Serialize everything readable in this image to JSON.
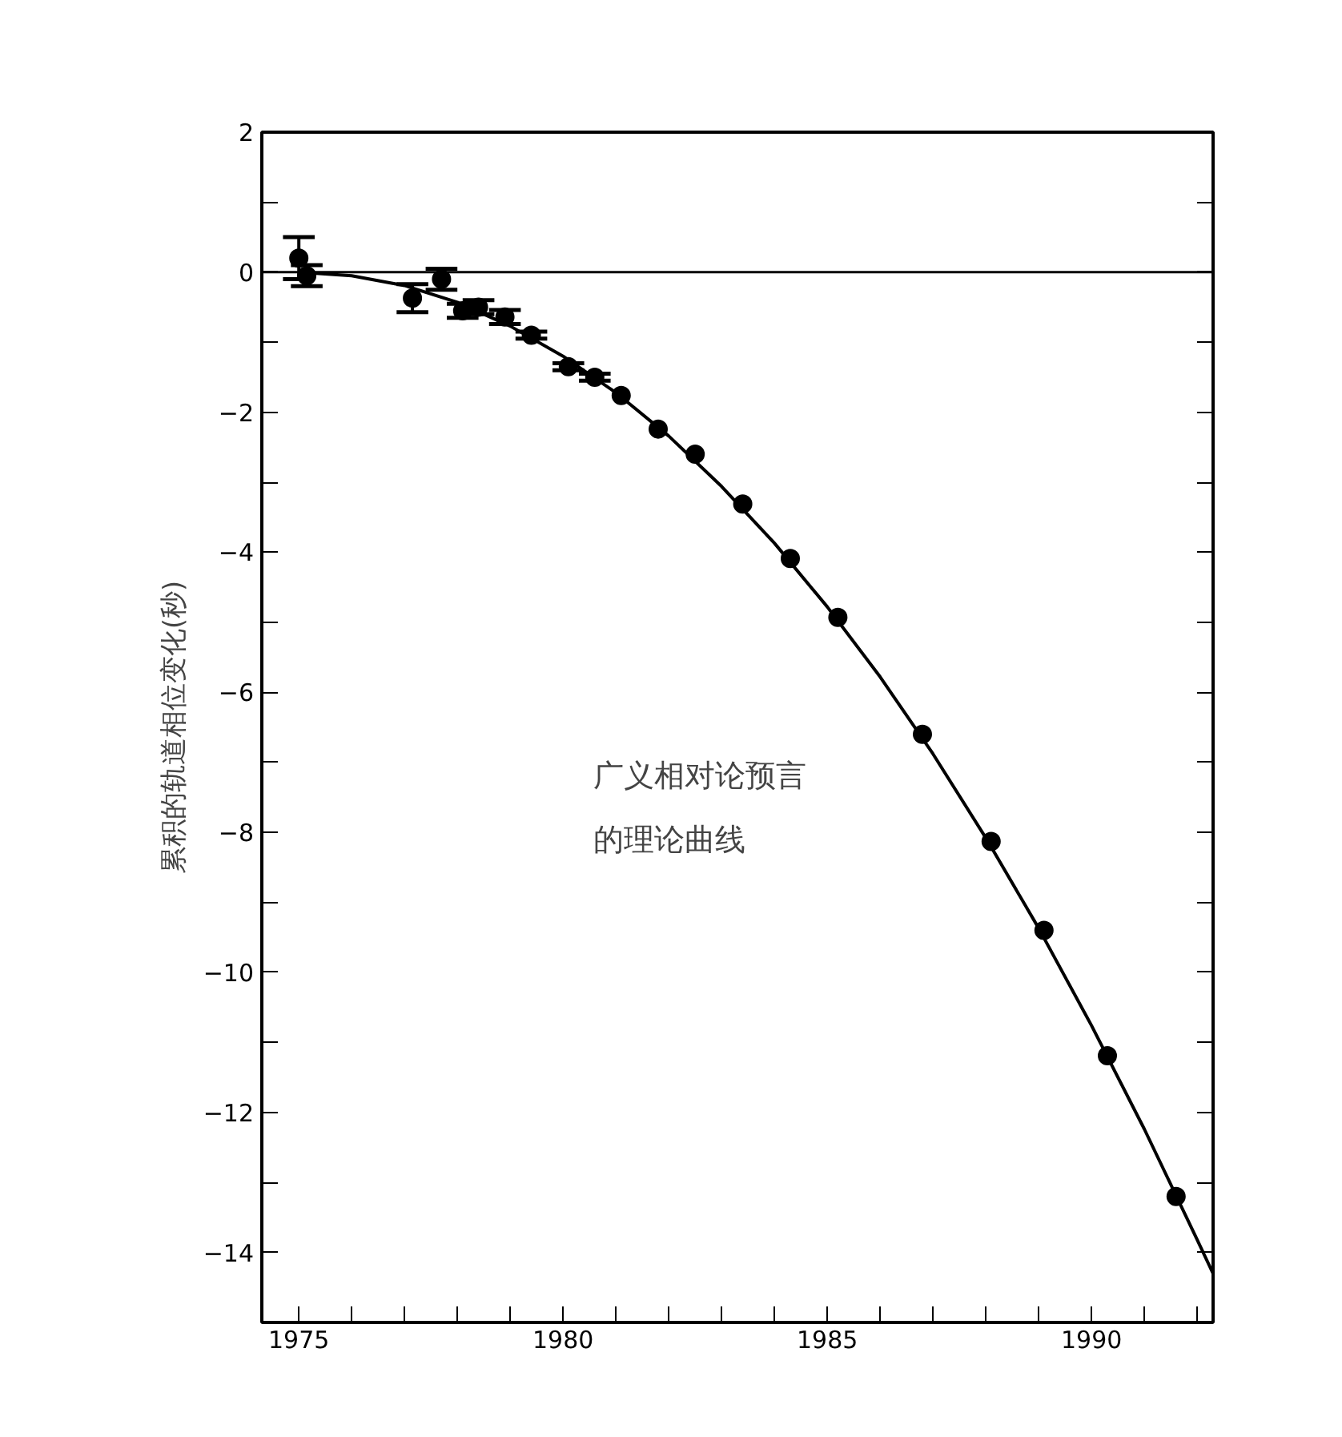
{
  "chart_data": {
    "type": "scatter",
    "ylabel": "累积的轨道相位变化(秒)",
    "annotations": [
      "广义相对论预言",
      "的理论曲线"
    ],
    "xlim": [
      1974.3,
      1992.3
    ],
    "ylim": [
      -15,
      2
    ],
    "xticks": [
      {
        "value": 1975,
        "label": "1975"
      },
      {
        "value": 1976,
        "label": null
      },
      {
        "value": 1977,
        "label": null
      },
      {
        "value": 1978,
        "label": null
      },
      {
        "value": 1979,
        "label": null
      },
      {
        "value": 1980,
        "label": "1980"
      },
      {
        "value": 1981,
        "label": null
      },
      {
        "value": 1982,
        "label": null
      },
      {
        "value": 1983,
        "label": null
      },
      {
        "value": 1984,
        "label": null
      },
      {
        "value": 1985,
        "label": "1985"
      },
      {
        "value": 1986,
        "label": null
      },
      {
        "value": 1987,
        "label": null
      },
      {
        "value": 1988,
        "label": null
      },
      {
        "value": 1989,
        "label": null
      },
      {
        "value": 1990,
        "label": "1990"
      },
      {
        "value": 1991,
        "label": null
      },
      {
        "value": 1992,
        "label": null
      }
    ],
    "yticks": [
      2,
      {
        "value": 1,
        "label": null
      },
      0,
      {
        "value": -1,
        "label": null
      },
      {
        "value": -2,
        "label": "−2"
      },
      {
        "value": -3,
        "label": null
      },
      {
        "value": -4,
        "label": "−4"
      },
      {
        "value": -5,
        "label": null
      },
      {
        "value": -6,
        "label": "−6"
      },
      {
        "value": -7,
        "label": null
      },
      {
        "value": -8,
        "label": "−8"
      },
      {
        "value": -9,
        "label": null
      },
      {
        "value": -10,
        "label": "−10"
      },
      {
        "value": -11,
        "label": null
      },
      {
        "value": -12,
        "label": "−12"
      },
      {
        "value": -13,
        "label": null
      },
      {
        "value": -14,
        "label": "−14"
      }
    ],
    "ref_lines": [
      {
        "axis": "y",
        "value": 0,
        "color": "#000000"
      }
    ],
    "grid": false,
    "series": [
      {
        "color": "#000000",
        "marker": "circle",
        "x": [
          1975.0,
          1975.15,
          1977.15,
          1977.7,
          1978.1,
          1978.4,
          1978.9,
          1979.4,
          1980.1,
          1980.6,
          1981.1,
          1981.8,
          1982.5,
          1983.4,
          1984.3,
          1985.2,
          1986.8,
          1988.1,
          1989.1,
          1990.3,
          1991.6
        ],
        "values": [
          0.2,
          -0.05,
          -0.37,
          -0.1,
          -0.55,
          -0.5,
          -0.64,
          -0.9,
          -1.35,
          -1.5,
          -1.76,
          -2.24,
          -2.6,
          -3.31,
          -4.09,
          -4.93,
          -6.6,
          -8.13,
          -9.4,
          -11.19,
          -13.2
        ],
        "errors": [
          0.3,
          0.15,
          0.2,
          0.15,
          0.1,
          0.1,
          0.1,
          0.05,
          0.05,
          0.05,
          null,
          null,
          null,
          null,
          null,
          null,
          null,
          null,
          null,
          null,
          null
        ]
      },
      {
        "type": "line",
        "color": "#000000",
        "line_style": "solid",
        "x": [
          1975,
          1976,
          1977,
          1978,
          1979,
          1980,
          1981,
          1982,
          1983,
          1984,
          1985,
          1986,
          1987,
          1988,
          1989,
          1990,
          1991,
          1992,
          1992.3
        ],
        "values": [
          0,
          -0.05,
          -0.19,
          -0.43,
          -0.77,
          -1.2,
          -1.72,
          -2.34,
          -3.06,
          -3.87,
          -4.78,
          -5.78,
          -6.88,
          -8.08,
          -9.37,
          -10.76,
          -12.24,
          -13.82,
          -14.3
        ]
      }
    ]
  }
}
